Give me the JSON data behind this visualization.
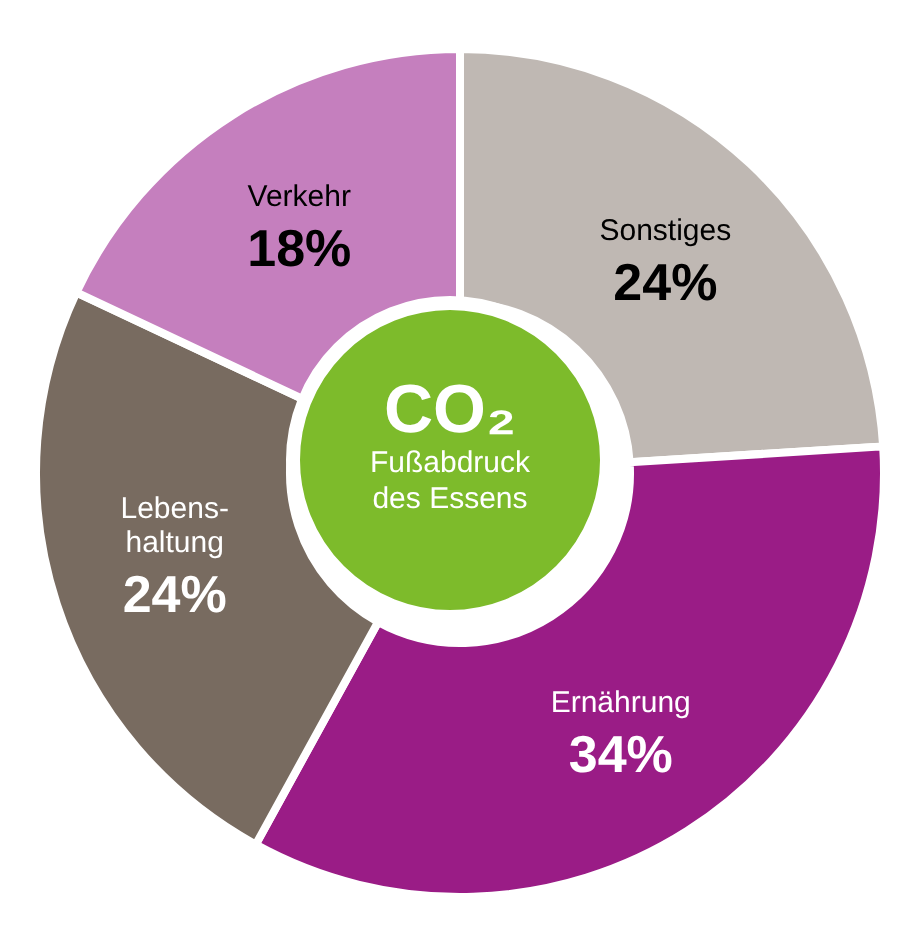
{
  "chart_data": {
    "type": "donut",
    "title": "CO₂",
    "subtitle": "Fußabdruck\ndes Essens",
    "categories": [
      "Sonstiges",
      "Ernährung",
      "Lebens-\nhaltung",
      "Verkehr"
    ],
    "values": [
      24,
      34,
      24,
      18
    ],
    "value_labels": [
      "24%",
      "34%",
      "24%",
      "18%"
    ],
    "colors": [
      "#bfb8b3",
      "#9a1c86",
      "#786b60",
      "#c57fbe"
    ]
  }
}
